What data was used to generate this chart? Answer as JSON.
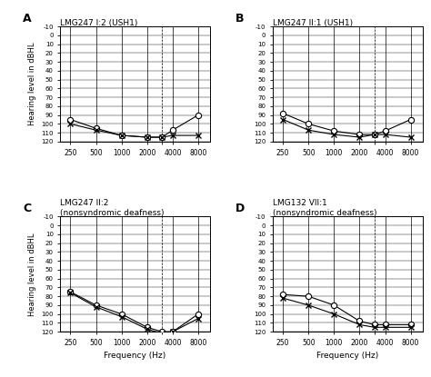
{
  "panels": [
    {
      "label": "A",
      "title": "LMG247 I:2 (USH1)",
      "title2": "",
      "right_values": [
        95,
        105,
        113,
        115,
        115,
        107,
        90
      ],
      "left_values": [
        100,
        107,
        113,
        115,
        115,
        113,
        113
      ]
    },
    {
      "label": "B",
      "title": "LMG247 II:1 (USH1)",
      "title2": "",
      "right_values": [
        88,
        100,
        108,
        112,
        112,
        108,
        95
      ],
      "left_values": [
        95,
        107,
        112,
        115,
        112,
        112,
        115
      ]
    },
    {
      "label": "C",
      "title": "LMG247 II:2",
      "title2": "(nonsyndromic deafness)",
      "right_values": [
        75,
        90,
        100,
        115,
        120,
        120,
        100
      ],
      "left_values": [
        76,
        92,
        103,
        117,
        122,
        120,
        105
      ]
    },
    {
      "label": "D",
      "title": "LMG132 VII:1",
      "title2": "(nonsyndromic deafness)",
      "right_values": [
        78,
        80,
        90,
        108,
        112,
        112,
        112
      ],
      "left_values": [
        82,
        90,
        100,
        112,
        115,
        115,
        115
      ]
    }
  ],
  "freqs": [
    250,
    500,
    1000,
    2000,
    3000,
    4000,
    8000
  ],
  "freq_ticks": [
    250,
    500,
    1000,
    2000,
    4000,
    8000
  ],
  "freq_minor": [
    3000
  ],
  "yticks": [
    -10,
    0,
    10,
    20,
    30,
    40,
    50,
    60,
    70,
    80,
    90,
    100,
    110,
    120
  ],
  "xlabel": "Frequency (Hz)",
  "ylabel": "Hearing level in dBHL",
  "bg_color": "#ffffff"
}
